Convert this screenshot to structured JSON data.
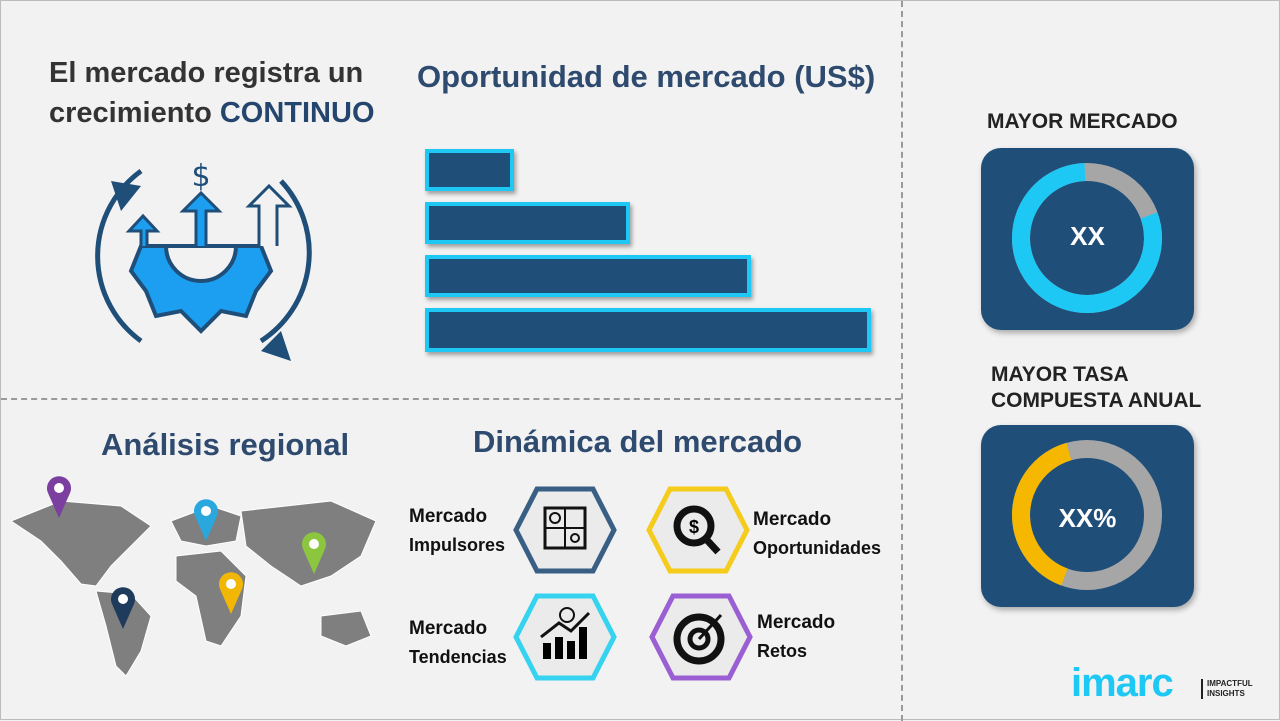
{
  "headline": {
    "line1": "El mercado registra un",
    "line2_prefix": "crecimiento ",
    "line2_accent": "CONTINUO"
  },
  "opportunity": {
    "title": "Oportunidad de mercado (US$)",
    "bar_levels": [
      0.2,
      0.46,
      0.73,
      1.0
    ],
    "bar_color": "#1f4e79",
    "bar_border": "#1ec8f5"
  },
  "regional": {
    "title": "Análisis regional",
    "pin_colors": [
      "#7b3fa0",
      "#2aa7dc",
      "#8cc63f",
      "#f2b705",
      "#1f3b5c"
    ]
  },
  "dynamics": {
    "title": "Dinámica del mercado",
    "items": [
      {
        "line1": "Mercado",
        "line2": "Impulsores",
        "color": "#3a5f85",
        "icon": "puzzle-icon"
      },
      {
        "line1": "Mercado",
        "line2": "Oportunidades",
        "color": "#f5cc1b",
        "icon": "magnifier-dollar-icon"
      },
      {
        "line1": "Mercado",
        "line2": "Tendencias",
        "color": "#35d3f0",
        "icon": "growth-chart-icon"
      },
      {
        "line1": "Mercado",
        "line2": "Retos",
        "color": "#9b5fd4",
        "icon": "target-icon"
      }
    ]
  },
  "largest_market": {
    "title": "MAYOR MERCADO",
    "value": "XX",
    "share": 0.8,
    "color": "#1ec8f5",
    "rest_color": "#a6a6a6"
  },
  "highest_cagr": {
    "title_line1": "MAYOR TASA",
    "title_line2": "COMPUESTA ANUAL",
    "value": "XX%",
    "share": 0.4,
    "color": "#f5b700",
    "rest_color": "#a6a6a6"
  },
  "logo": {
    "brand": "imarc",
    "tagline_line1": "IMPACTFUL",
    "tagline_line2": "INSIGHTS"
  }
}
